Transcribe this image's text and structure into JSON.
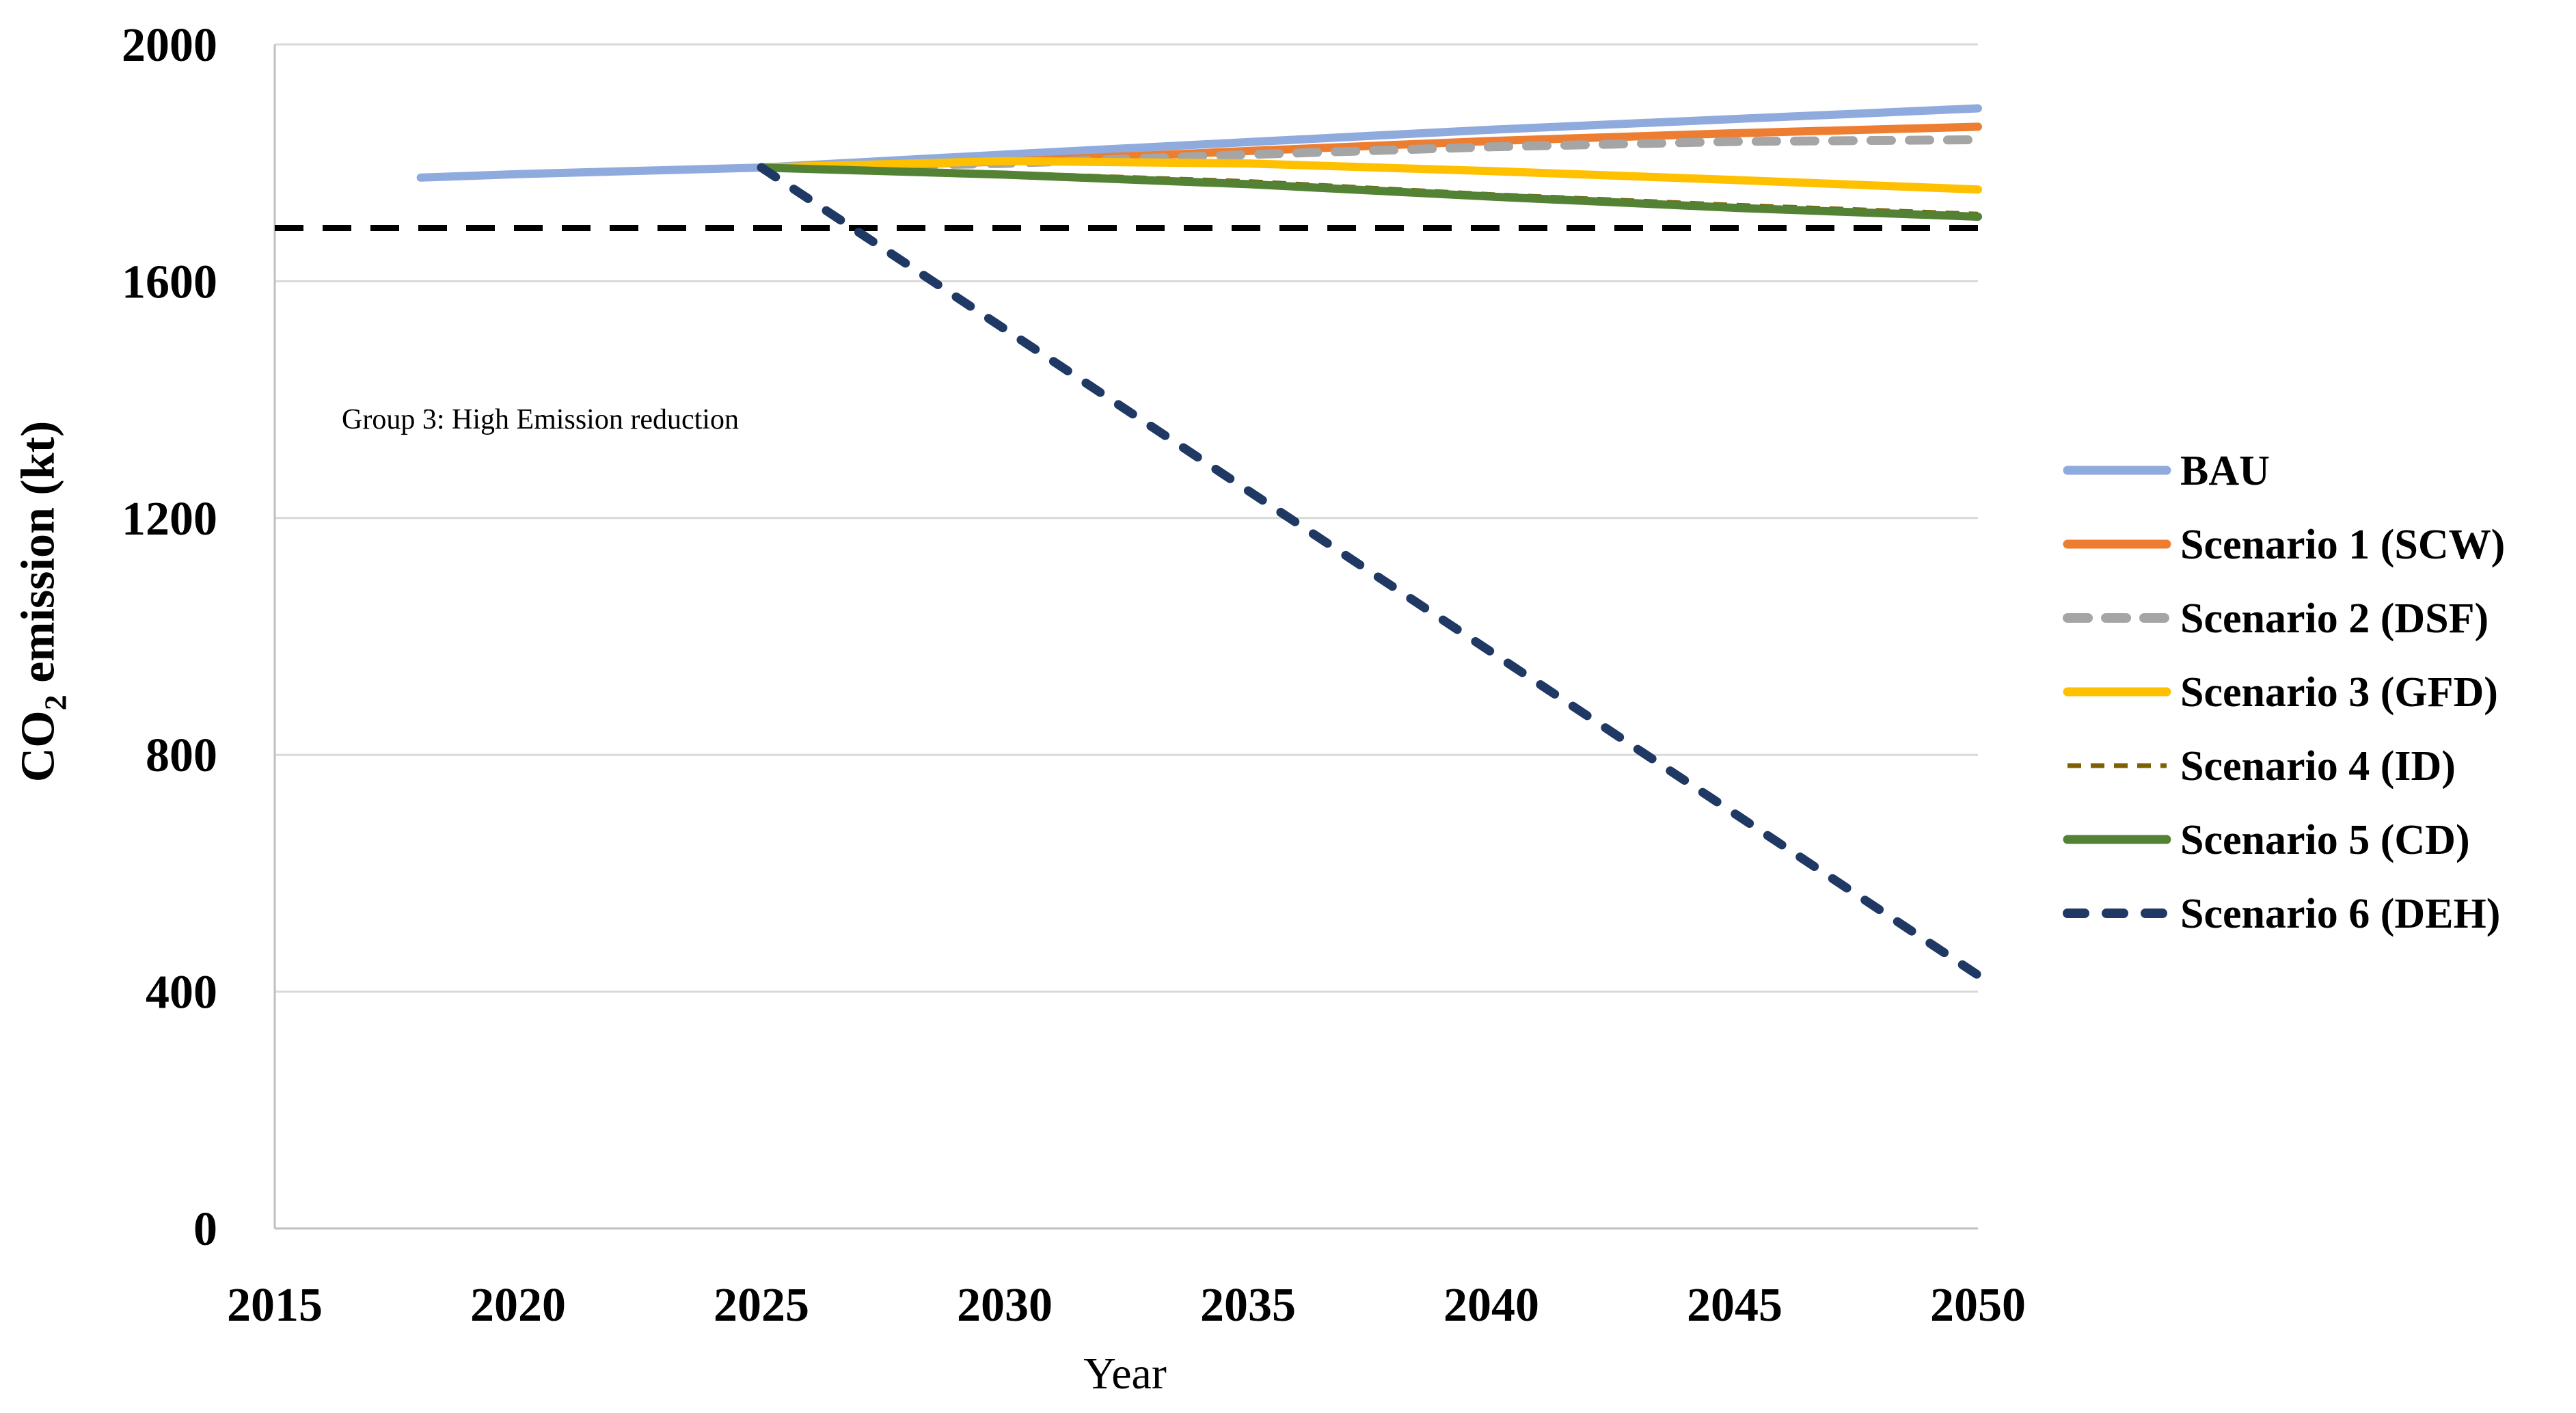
{
  "figure": {
    "y_axis_title": {
      "prefix": "CO",
      "sub": "2",
      "rest": " emission (kt)"
    },
    "colors": {
      "grid": "#D9D9D9",
      "axis": "#BFBFBF",
      "text": "#000000",
      "reference": "#000000"
    }
  },
  "chart_data": {
    "type": "line",
    "title": "",
    "xlabel": "Year",
    "ylabel": "CO2 emission (kt)",
    "xlim": [
      2015,
      2050
    ],
    "ylim": [
      0,
      2000
    ],
    "x_ticks": [
      2015,
      2020,
      2025,
      2030,
      2035,
      2040,
      2045,
      2050
    ],
    "y_ticks": [
      0,
      400,
      800,
      1200,
      1600,
      2000
    ],
    "grid": "horizontal",
    "legend_position": "right-middle",
    "annotation": "Group 3: High Emission reduction",
    "reference_line": {
      "y": 1690,
      "style": "dashed",
      "color": "#000000"
    },
    "series": [
      {
        "name": "BAU",
        "color": "#8FAADC",
        "line": "solid",
        "width": 12,
        "points": [
          [
            2018,
            1775
          ],
          [
            2020,
            1781
          ],
          [
            2025,
            1792
          ],
          [
            2030,
            1814
          ],
          [
            2035,
            1835
          ],
          [
            2040,
            1856
          ],
          [
            2045,
            1874
          ],
          [
            2050,
            1892
          ]
        ]
      },
      {
        "name": "Scenario 1 (SCW)",
        "color": "#ED7D31",
        "line": "solid",
        "width": 12,
        "points": [
          [
            2025,
            1792
          ],
          [
            2030,
            1802
          ],
          [
            2035,
            1820
          ],
          [
            2040,
            1837
          ],
          [
            2045,
            1850
          ],
          [
            2050,
            1861
          ]
        ]
      },
      {
        "name": "Scenario 2 (DSF)",
        "color": "#A5A5A5",
        "line": "dashed",
        "width": 13,
        "dash": "30 26",
        "cap": "round",
        "points": [
          [
            2025,
            1792
          ],
          [
            2030,
            1799
          ],
          [
            2035,
            1814
          ],
          [
            2040,
            1827
          ],
          [
            2045,
            1836
          ],
          [
            2050,
            1839
          ]
        ]
      },
      {
        "name": "Scenario 3 (GFD)",
        "color": "#FFC000",
        "line": "solid",
        "width": 12,
        "points": [
          [
            2025,
            1792
          ],
          [
            2030,
            1803
          ],
          [
            2035,
            1799
          ],
          [
            2040,
            1786
          ],
          [
            2045,
            1771
          ],
          [
            2050,
            1755
          ]
        ]
      },
      {
        "name": "Scenario 4 (ID)",
        "color": "#7F6000",
        "line": "dashed",
        "width": 6,
        "dash": "20 14",
        "cap": "butt",
        "points": [
          [
            2025,
            1792
          ],
          [
            2030,
            1783
          ],
          [
            2035,
            1769
          ],
          [
            2040,
            1747
          ],
          [
            2045,
            1729
          ],
          [
            2050,
            1714
          ]
        ]
      },
      {
        "name": "Scenario 5 (CD)",
        "color": "#548235",
        "line": "solid",
        "width": 12,
        "points": [
          [
            2025,
            1792
          ],
          [
            2030,
            1780
          ],
          [
            2035,
            1764
          ],
          [
            2040,
            1743
          ],
          [
            2045,
            1724
          ],
          [
            2050,
            1709
          ]
        ]
      },
      {
        "name": "Scenario 6 (DEH)",
        "color": "#1F3864",
        "line": "dashed",
        "width": 13,
        "dash": "25 32",
        "cap": "round",
        "points": [
          [
            2025,
            1792
          ],
          [
            2050,
            428
          ]
        ]
      }
    ]
  }
}
